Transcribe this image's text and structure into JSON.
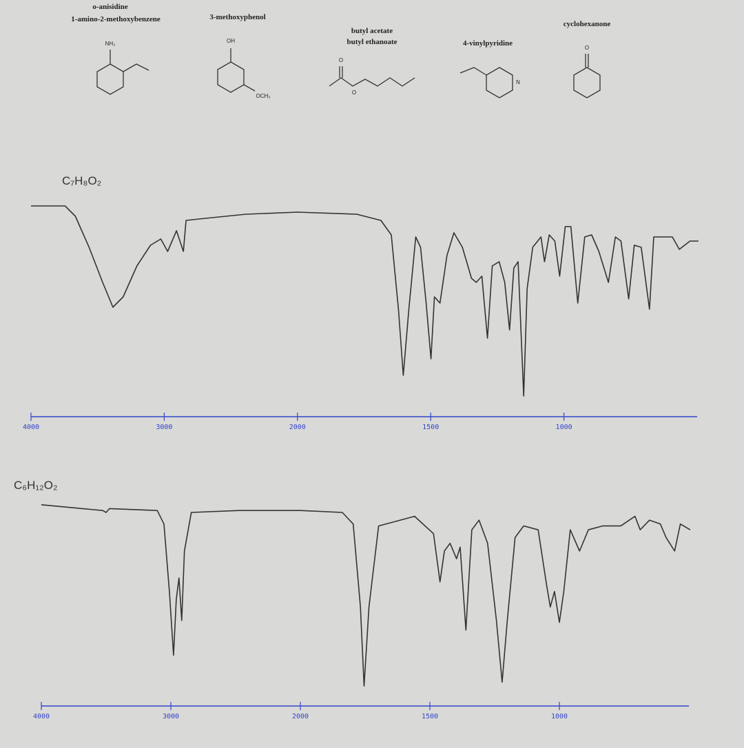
{
  "structures": [
    {
      "names": [
        "o-anisidine",
        "1-amino-2-methoxybenzene"
      ],
      "atoms": [
        "NH₂"
      ]
    },
    {
      "names": [
        "3-methoxyphenol"
      ],
      "atoms": [
        "OH",
        "OCH₃"
      ]
    },
    {
      "names": [
        "butyl acetate",
        "butyl ethanoate"
      ],
      "atoms": [
        "O",
        "O"
      ]
    },
    {
      "names": [
        "4-vinylpyridine"
      ],
      "atoms": [
        "N"
      ]
    },
    {
      "names": [
        "cyclohexanone"
      ],
      "atoms": [
        "O"
      ]
    }
  ],
  "chart_data": [
    {
      "type": "line",
      "title": "C₇H₈O₂",
      "color": "#333333",
      "x": [
        4000,
        3744,
        3667,
        3564,
        3462,
        3385,
        3308,
        3205,
        3103,
        3026,
        2974,
        2908,
        2856,
        2836,
        2692,
        2385,
        2000,
        1778,
        1687,
        1648,
        1621,
        1603,
        1582,
        1556,
        1538,
        1517,
        1499,
        1486,
        1465,
        1439,
        1413,
        1381,
        1347,
        1329,
        1308,
        1287,
        1269,
        1243,
        1222,
        1204,
        1188,
        1172,
        1151,
        1138,
        1117,
        1086,
        1073,
        1055,
        1034,
        1016,
        995,
        974,
        948,
        922,
        896,
        869,
        833,
        807,
        786,
        757,
        736,
        710,
        679,
        663,
        593,
        567,
        527,
        495
      ],
      "values": [
        97,
        97,
        92,
        77,
        60,
        48,
        53,
        68,
        78,
        81,
        75,
        85,
        75,
        90,
        91,
        93,
        94,
        93,
        90,
        83,
        47,
        15,
        47,
        82,
        77,
        50,
        23,
        53,
        50,
        73,
        84,
        77,
        62,
        60,
        63,
        33,
        68,
        70,
        60,
        37,
        67,
        70,
        5,
        57,
        77,
        82,
        70,
        83,
        80,
        63,
        87,
        87,
        50,
        82,
        83,
        75,
        60,
        82,
        80,
        52,
        78,
        77,
        47,
        82,
        82,
        76,
        80,
        80
      ],
      "xlim": [
        4000,
        500
      ],
      "xticks": [
        4000,
        3000,
        2000,
        1500,
        1000
      ],
      "ylim": [
        0,
        100
      ],
      "x_scale_break": 2000
    },
    {
      "type": "line",
      "title": "C₆H₁₂O₂",
      "color": "#333333",
      "x": [
        4000,
        3684,
        3526,
        3500,
        3474,
        3105,
        3053,
        3011,
        2979,
        2958,
        2937,
        2916,
        2895,
        2842,
        2474,
        2000,
        1838,
        1796,
        1768,
        1754,
        1735,
        1698,
        1559,
        1486,
        1461,
        1444,
        1422,
        1397,
        1383,
        1361,
        1338,
        1310,
        1277,
        1243,
        1221,
        1201,
        1171,
        1138,
        1082,
        1049,
        1035,
        1019,
        1000,
        983,
        958,
        922,
        888,
        833,
        763,
        708,
        688,
        652,
        610,
        588,
        555,
        533,
        495
      ],
      "values": [
        99,
        97,
        96,
        95,
        97,
        96,
        89,
        54,
        21,
        50,
        61,
        39,
        75,
        95,
        96,
        96,
        95,
        89,
        46,
        5,
        46,
        88,
        93,
        84,
        59,
        75,
        79,
        71,
        77,
        34,
        86,
        91,
        79,
        39,
        7,
        39,
        82,
        88,
        86,
        57,
        46,
        54,
        38,
        54,
        86,
        75,
        86,
        88,
        88,
        93,
        86,
        91,
        89,
        82,
        75,
        89,
        86
      ],
      "xlim": [
        4000,
        500
      ],
      "xticks": [
        4000,
        3000,
        2000,
        1500,
        1000
      ],
      "ylim": [
        0,
        100
      ],
      "x_scale_break": 2000
    }
  ]
}
